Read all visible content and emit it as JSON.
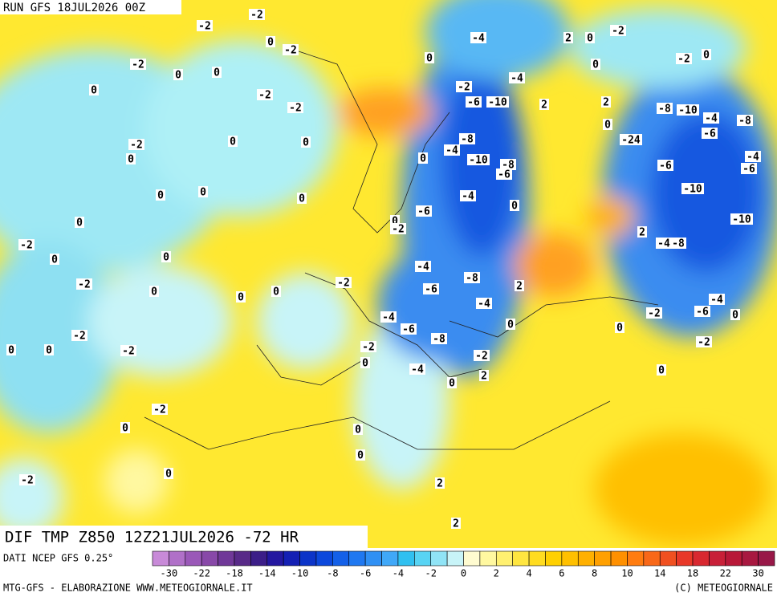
{
  "header": {
    "run": "RUN GFS 18JUL2026 00Z"
  },
  "map": {
    "contour_labels": [
      "-2",
      "-2",
      "0",
      "-2",
      "-2",
      "0",
      "-4",
      "2",
      "0",
      "-2",
      "0",
      "-2",
      "0",
      "0",
      "0",
      "0",
      "-2",
      "-2",
      "-2",
      "-4",
      "-6",
      "-10",
      "2",
      "2",
      "-8",
      "-10",
      "-4",
      "-8",
      "0",
      "-2",
      "0",
      "0",
      "-8",
      "-4",
      "-10",
      "-8",
      "-6",
      "-24",
      "-6",
      "-4",
      "-6",
      "-6",
      "0",
      "0",
      "0",
      "0",
      "0",
      "-4",
      "-10",
      "-6",
      "0",
      "-2",
      "0",
      "-10",
      "0",
      "2",
      "-4",
      "-8",
      "-2",
      "0",
      "0",
      "-4",
      "-8",
      "-2",
      "-6",
      "2",
      "-2",
      "0",
      "0",
      "0",
      "-4",
      "-4",
      "-6",
      "0",
      "-4",
      "-6",
      "-2",
      "0",
      "0",
      "-2",
      "-8",
      "-2",
      "-2",
      "0",
      "0",
      "-2",
      "-2",
      "0",
      "-4",
      "2",
      "0",
      "0",
      "-2",
      "0",
      "0",
      "0",
      "0",
      "-2",
      "2",
      "2"
    ]
  },
  "footer": {
    "title": "DIF TMP Z850 12Z21JUL2026 -72 HR",
    "source": "DATI NCEP GFS 0.25°",
    "credit": "MTG-GFS - ELABORAZIONE WWW.METEOGIORNALE.IT",
    "copyright": "(C) METEOGIORNALE"
  },
  "colorbar": {
    "colors": [
      "#c88ad8",
      "#b070c8",
      "#9a58b8",
      "#8848a8",
      "#703898",
      "#582a88",
      "#3c1e88",
      "#2418a0",
      "#1420b4",
      "#0c34c8",
      "#0c48dc",
      "#1460e8",
      "#2078f0",
      "#3090f4",
      "#40a8f8",
      "#30c0f0",
      "#58d4f4",
      "#90e4f6",
      "#c8f4f8",
      "#fffbd0",
      "#fff8a0",
      "#fff070",
      "#ffe640",
      "#ffdc20",
      "#ffd000",
      "#ffc000",
      "#ffb000",
      "#ffa000",
      "#ff9000",
      "#ff7c10",
      "#f86818",
      "#f05020",
      "#e83828",
      "#d82830",
      "#c82038",
      "#b81838",
      "#a81840",
      "#981848"
    ],
    "labels": [
      "-30",
      "-22",
      "-18",
      "-14",
      "-10",
      "-8",
      "-6",
      "-4",
      "-2",
      "0",
      "2",
      "4",
      "6",
      "8",
      "10",
      "14",
      "18",
      "22",
      "30"
    ]
  }
}
